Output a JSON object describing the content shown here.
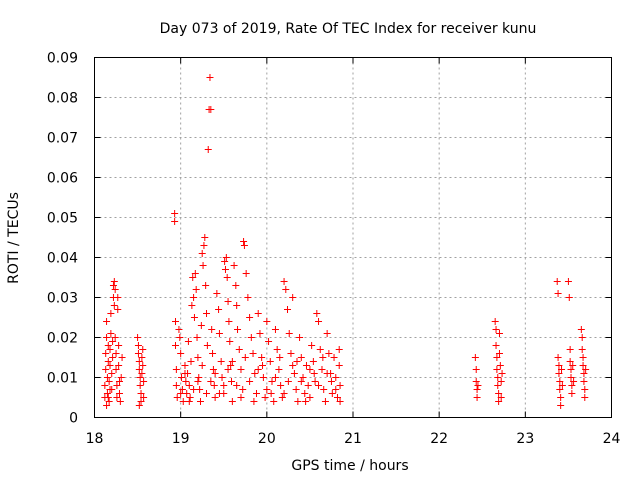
{
  "chart_data": {
    "type": "scatter",
    "title": "Day 073 of 2019, Rate Of TEC Index for receiver kunu",
    "xlabel": "GPS time / hours",
    "ylabel": "ROTI / TECUs",
    "xlim": [
      18,
      24
    ],
    "ylim": [
      0,
      0.09
    ],
    "x_ticks": [
      "18",
      "19",
      "20",
      "21",
      "22",
      "23",
      "24"
    ],
    "y_ticks": [
      "0",
      "0.01",
      "0.02",
      "0.03",
      "0.04",
      "0.05",
      "0.06",
      "0.07",
      "0.08",
      "0.09"
    ],
    "grid": true,
    "marker": "+",
    "color": "#ff0000",
    "series": [
      {
        "name": "ROTI",
        "points": [
          [
            18.12,
            0.005
          ],
          [
            18.12,
            0.008
          ],
          [
            18.13,
            0.012
          ],
          [
            18.13,
            0.016
          ],
          [
            18.14,
            0.02
          ],
          [
            18.14,
            0.024
          ],
          [
            18.15,
            0.006
          ],
          [
            18.15,
            0.01
          ],
          [
            18.16,
            0.014
          ],
          [
            18.16,
            0.018
          ],
          [
            18.17,
            0.004
          ],
          [
            18.17,
            0.009
          ],
          [
            18.18,
            0.013
          ],
          [
            18.18,
            0.017
          ],
          [
            18.19,
            0.021
          ],
          [
            18.19,
            0.026
          ],
          [
            18.2,
            0.007
          ],
          [
            18.2,
            0.011
          ],
          [
            18.21,
            0.015
          ],
          [
            18.21,
            0.019
          ],
          [
            18.22,
            0.03
          ],
          [
            18.22,
            0.033
          ],
          [
            18.23,
            0.034
          ],
          [
            18.23,
            0.028
          ],
          [
            18.24,
            0.032
          ],
          [
            18.24,
            0.02
          ],
          [
            18.25,
            0.016
          ],
          [
            18.25,
            0.012
          ],
          [
            18.26,
            0.008
          ],
          [
            18.26,
            0.005
          ],
          [
            18.27,
            0.03
          ],
          [
            18.27,
            0.027
          ],
          [
            18.28,
            0.018
          ],
          [
            18.28,
            0.013
          ],
          [
            18.29,
            0.009
          ],
          [
            18.29,
            0.006
          ],
          [
            18.3,
            0.004
          ],
          [
            18.31,
            0.01
          ],
          [
            18.32,
            0.015
          ],
          [
            18.14,
            0.003
          ],
          [
            18.16,
            0.005
          ],
          [
            18.18,
            0.007
          ],
          [
            18.5,
            0.02
          ],
          [
            18.51,
            0.018
          ],
          [
            18.51,
            0.016
          ],
          [
            18.52,
            0.014
          ],
          [
            18.52,
            0.012
          ],
          [
            18.53,
            0.01
          ],
          [
            18.53,
            0.008
          ],
          [
            18.54,
            0.006
          ],
          [
            18.54,
            0.004
          ],
          [
            18.55,
            0.015
          ],
          [
            18.55,
            0.011
          ],
          [
            18.56,
            0.013
          ],
          [
            18.56,
            0.017
          ],
          [
            18.57,
            0.009
          ],
          [
            18.57,
            0.005
          ],
          [
            18.52,
            0.003
          ],
          [
            18.93,
            0.051
          ],
          [
            18.93,
            0.049
          ],
          [
            18.94,
            0.024
          ],
          [
            18.94,
            0.018
          ],
          [
            18.95,
            0.012
          ],
          [
            18.95,
            0.008
          ],
          [
            18.96,
            0.005
          ],
          [
            18.98,
            0.022
          ],
          [
            18.99,
            0.02
          ],
          [
            19.0,
            0.016
          ],
          [
            19.01,
            0.01
          ],
          [
            19.02,
            0.007
          ],
          [
            19.03,
            0.004
          ],
          [
            19.05,
            0.013
          ],
          [
            19.06,
            0.009
          ],
          [
            19.07,
            0.006
          ],
          [
            19.08,
            0.011
          ],
          [
            19.09,
            0.019
          ],
          [
            19.1,
            0.008
          ],
          [
            19.11,
            0.005
          ],
          [
            19.12,
            0.014
          ],
          [
            19.13,
            0.028
          ],
          [
            19.14,
            0.035
          ],
          [
            19.15,
            0.03
          ],
          [
            19.16,
            0.025
          ],
          [
            19.17,
            0.036
          ],
          [
            19.18,
            0.032
          ],
          [
            19.19,
            0.02
          ],
          [
            19.2,
            0.015
          ],
          [
            19.21,
            0.01
          ],
          [
            19.22,
            0.007
          ],
          [
            19.23,
            0.004
          ],
          [
            19.24,
            0.023
          ],
          [
            19.25,
            0.041
          ],
          [
            19.26,
            0.038
          ],
          [
            19.27,
            0.043
          ],
          [
            19.28,
            0.045
          ],
          [
            19.29,
            0.033
          ],
          [
            19.3,
            0.026
          ],
          [
            19.31,
            0.018
          ],
          [
            19.32,
            0.067
          ],
          [
            19.33,
            0.077
          ],
          [
            19.34,
            0.085
          ],
          [
            19.35,
            0.077
          ],
          [
            19.36,
            0.022
          ],
          [
            19.37,
            0.016
          ],
          [
            19.38,
            0.012
          ],
          [
            19.39,
            0.008
          ],
          [
            19.4,
            0.005
          ],
          [
            19.42,
            0.031
          ],
          [
            19.44,
            0.027
          ],
          [
            19.45,
            0.021
          ],
          [
            19.47,
            0.014
          ],
          [
            19.48,
            0.01
          ],
          [
            19.5,
            0.006
          ],
          [
            19.51,
            0.039
          ],
          [
            19.52,
            0.037
          ],
          [
            19.53,
            0.04
          ],
          [
            19.54,
            0.035
          ],
          [
            19.55,
            0.029
          ],
          [
            19.56,
            0.024
          ],
          [
            19.57,
            0.019
          ],
          [
            19.58,
            0.013
          ],
          [
            19.59,
            0.009
          ],
          [
            19.6,
            0.004
          ],
          [
            19.62,
            0.038
          ],
          [
            19.64,
            0.033
          ],
          [
            19.65,
            0.028
          ],
          [
            19.66,
            0.022
          ],
          [
            19.68,
            0.017
          ],
          [
            19.7,
            0.012
          ],
          [
            19.72,
            0.007
          ],
          [
            19.73,
            0.044
          ],
          [
            19.74,
            0.043
          ],
          [
            19.76,
            0.036
          ],
          [
            19.78,
            0.03
          ],
          [
            19.8,
            0.025
          ],
          [
            19.82,
            0.02
          ],
          [
            19.84,
            0.016
          ],
          [
            19.86,
            0.011
          ],
          [
            19.88,
            0.006
          ],
          [
            19.9,
            0.026
          ],
          [
            19.92,
            0.021
          ],
          [
            19.94,
            0.015
          ],
          [
            19.96,
            0.01
          ],
          [
            19.98,
            0.005
          ],
          [
            20.0,
            0.024
          ],
          [
            20.02,
            0.019
          ],
          [
            20.04,
            0.014
          ],
          [
            20.06,
            0.009
          ],
          [
            20.08,
            0.004
          ],
          [
            20.1,
            0.022
          ],
          [
            20.12,
            0.017
          ],
          [
            20.14,
            0.012
          ],
          [
            20.16,
            0.008
          ],
          [
            20.18,
            0.005
          ],
          [
            20.2,
            0.034
          ],
          [
            20.22,
            0.032
          ],
          [
            20.24,
            0.027
          ],
          [
            20.26,
            0.021
          ],
          [
            20.28,
            0.016
          ],
          [
            20.3,
            0.03
          ],
          [
            20.32,
            0.011
          ],
          [
            20.34,
            0.007
          ],
          [
            20.36,
            0.004
          ],
          [
            20.38,
            0.02
          ],
          [
            20.4,
            0.015
          ],
          [
            20.42,
            0.01
          ],
          [
            20.44,
            0.006
          ],
          [
            20.46,
            0.013
          ],
          [
            20.48,
            0.008
          ],
          [
            20.5,
            0.005
          ],
          [
            20.52,
            0.018
          ],
          [
            20.54,
            0.014
          ],
          [
            20.56,
            0.009
          ],
          [
            20.58,
            0.026
          ],
          [
            20.6,
            0.024
          ],
          [
            20.62,
            0.017
          ],
          [
            20.64,
            0.012
          ],
          [
            20.66,
            0.007
          ],
          [
            20.68,
            0.004
          ],
          [
            20.7,
            0.021
          ],
          [
            20.72,
            0.016
          ],
          [
            20.74,
            0.011
          ],
          [
            20.76,
            0.006
          ],
          [
            20.78,
            0.015
          ],
          [
            20.8,
            0.01
          ],
          [
            20.82,
            0.005
          ],
          [
            20.84,
            0.017
          ],
          [
            20.84,
            0.013
          ],
          [
            20.85,
            0.008
          ],
          [
            20.85,
            0.004
          ],
          [
            19.0,
            0.006
          ],
          [
            19.1,
            0.004
          ],
          [
            19.2,
            0.009
          ],
          [
            19.3,
            0.006
          ],
          [
            19.4,
            0.011
          ],
          [
            19.5,
            0.008
          ],
          [
            19.6,
            0.014
          ],
          [
            19.7,
            0.005
          ],
          [
            19.8,
            0.009
          ],
          [
            19.9,
            0.012
          ],
          [
            20.0,
            0.007
          ],
          [
            20.1,
            0.01
          ],
          [
            20.2,
            0.006
          ],
          [
            20.3,
            0.013
          ],
          [
            20.4,
            0.009
          ],
          [
            20.5,
            0.012
          ],
          [
            20.6,
            0.008
          ],
          [
            20.7,
            0.011
          ],
          [
            20.8,
            0.007
          ],
          [
            19.05,
            0.011
          ],
          [
            19.15,
            0.007
          ],
          [
            19.25,
            0.013
          ],
          [
            19.35,
            0.009
          ],
          [
            19.45,
            0.006
          ],
          [
            19.55,
            0.012
          ],
          [
            19.65,
            0.008
          ],
          [
            19.75,
            0.015
          ],
          [
            19.85,
            0.004
          ],
          [
            19.95,
            0.013
          ],
          [
            20.05,
            0.006
          ],
          [
            20.15,
            0.015
          ],
          [
            20.25,
            0.009
          ],
          [
            20.35,
            0.014
          ],
          [
            20.45,
            0.004
          ],
          [
            20.55,
            0.011
          ],
          [
            20.65,
            0.015
          ],
          [
            20.75,
            0.009
          ],
          [
            22.42,
            0.015
          ],
          [
            22.43,
            0.012
          ],
          [
            22.43,
            0.009
          ],
          [
            22.44,
            0.007
          ],
          [
            22.44,
            0.005
          ],
          [
            22.45,
            0.008
          ],
          [
            22.65,
            0.024
          ],
          [
            22.66,
            0.022
          ],
          [
            22.66,
            0.018
          ],
          [
            22.67,
            0.015
          ],
          [
            22.67,
            0.012
          ],
          [
            22.68,
            0.01
          ],
          [
            22.68,
            0.008
          ],
          [
            22.69,
            0.006
          ],
          [
            22.69,
            0.004
          ],
          [
            22.7,
            0.021
          ],
          [
            22.7,
            0.016
          ],
          [
            22.71,
            0.013
          ],
          [
            22.72,
            0.009
          ],
          [
            22.72,
            0.005
          ],
          [
            22.73,
            0.011
          ],
          [
            23.37,
            0.034
          ],
          [
            23.38,
            0.031
          ],
          [
            23.38,
            0.015
          ],
          [
            23.39,
            0.013
          ],
          [
            23.39,
            0.011
          ],
          [
            23.4,
            0.009
          ],
          [
            23.4,
            0.007
          ],
          [
            23.41,
            0.005
          ],
          [
            23.41,
            0.003
          ],
          [
            23.42,
            0.012
          ],
          [
            23.43,
            0.008
          ],
          [
            23.5,
            0.034
          ],
          [
            23.51,
            0.03
          ],
          [
            23.52,
            0.017
          ],
          [
            23.52,
            0.014
          ],
          [
            23.53,
            0.012
          ],
          [
            23.53,
            0.01
          ],
          [
            23.54,
            0.008
          ],
          [
            23.54,
            0.006
          ],
          [
            23.55,
            0.013
          ],
          [
            23.56,
            0.009
          ],
          [
            23.65,
            0.022
          ],
          [
            23.66,
            0.02
          ],
          [
            23.66,
            0.017
          ],
          [
            23.67,
            0.015
          ],
          [
            23.67,
            0.013
          ],
          [
            23.68,
            0.011
          ],
          [
            23.68,
            0.009
          ],
          [
            23.69,
            0.007
          ],
          [
            23.69,
            0.005
          ],
          [
            23.7,
            0.012
          ]
        ]
      }
    ]
  }
}
